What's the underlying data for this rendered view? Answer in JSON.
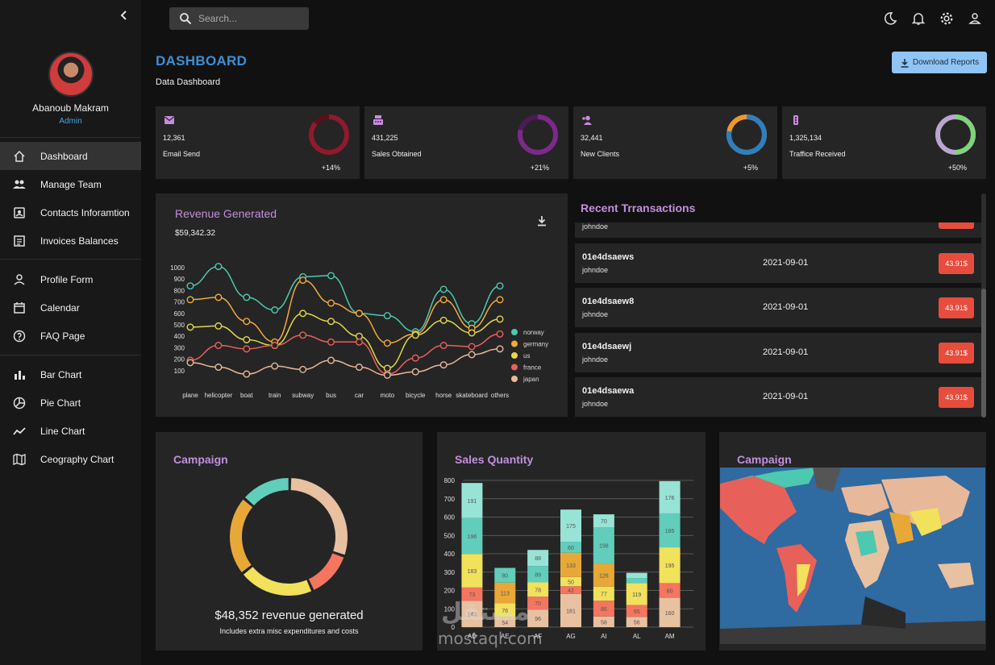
{
  "sidebar": {
    "user": {
      "name": "Abanoub Makram",
      "role": "Admin"
    },
    "items": [
      {
        "label": "Dashboard",
        "icon": "home-icon",
        "active": true
      },
      {
        "label": "Manage Team",
        "icon": "people-icon"
      },
      {
        "label": "Contacts Inforamtion",
        "icon": "contacts-icon"
      },
      {
        "label": "Invoices Balances",
        "icon": "receipt-icon"
      },
      {
        "label": "Profile Form",
        "icon": "person-icon"
      },
      {
        "label": "Calendar",
        "icon": "calendar-icon"
      },
      {
        "label": "FAQ Page",
        "icon": "help-icon"
      },
      {
        "label": "Bar Chart",
        "icon": "bar-chart-icon"
      },
      {
        "label": "Pie Chart",
        "icon": "pie-chart-icon"
      },
      {
        "label": "Line Chart",
        "icon": "line-chart-icon"
      },
      {
        "label": "Ceography Chart",
        "icon": "map-icon"
      }
    ]
  },
  "topbar": {
    "search_placeholder": "Search...",
    "icons": [
      "dark-mode-icon",
      "notifications-icon",
      "settings-icon",
      "person-icon"
    ]
  },
  "header": {
    "title": "DASHBOARD",
    "subtitle": "Data Dashboard",
    "download_label": "Download Reports"
  },
  "stats": [
    {
      "value": "12,361",
      "label": "Email Send",
      "change": "+14%",
      "progress": 0.86,
      "color": "#8e1a2e",
      "track": "#5a0f1c",
      "icon": "email-icon"
    },
    {
      "value": "431,225",
      "label": "Sales Obtained",
      "change": "+21%",
      "progress": 0.79,
      "color": "#7b2a8a",
      "track": "#4d1a57",
      "icon": "point-of-sale-icon"
    },
    {
      "value": "32,441",
      "label": "New Clients",
      "change": "+5%",
      "progress": 0.78,
      "color": "#2f7fc0",
      "track": "#f0962e",
      "icon": "person-add-icon"
    },
    {
      "value": "1,325,134",
      "label": "Traffice Received",
      "change": "+50%",
      "progress": 0.5,
      "color": "#7fd47b",
      "track": "#b9a6cf",
      "icon": "traffic-icon"
    }
  ],
  "revenue": {
    "title": "Revenue Generated",
    "value": "$59,342.32"
  },
  "chart_data": [
    {
      "type": "line",
      "x": [
        "plane",
        "helicopter",
        "boat",
        "train",
        "subway",
        "bus",
        "car",
        "moto",
        "bicycle",
        "horse",
        "skateboard",
        "others"
      ],
      "ylim": [
        0,
        1000
      ],
      "yticks": [
        100,
        200,
        300,
        400,
        500,
        600,
        700,
        800,
        900,
        1000
      ],
      "legend": "right",
      "series": [
        {
          "name": "norway",
          "color": "#4cc9b0",
          "values": [
            840,
            1010,
            740,
            630,
            920,
            930,
            600,
            580,
            440,
            810,
            510,
            840
          ]
        },
        {
          "name": "germany",
          "color": "#f2a93b",
          "values": [
            720,
            740,
            530,
            350,
            890,
            690,
            600,
            340,
            420,
            720,
            470,
            720
          ]
        },
        {
          "name": "us",
          "color": "#e3d94a",
          "values": [
            480,
            490,
            370,
            320,
            600,
            530,
            400,
            120,
            410,
            540,
            430,
            550
          ]
        },
        {
          "name": "france",
          "color": "#e8605a",
          "values": [
            190,
            320,
            290,
            320,
            410,
            350,
            350,
            70,
            210,
            320,
            310,
            420
          ]
        },
        {
          "name": "japan",
          "color": "#e8b89a",
          "values": [
            170,
            130,
            70,
            140,
            110,
            190,
            130,
            60,
            90,
            150,
            240,
            290
          ]
        }
      ]
    },
    {
      "type": "pie",
      "title": "Campaign",
      "slices": [
        {
          "value": 30,
          "color": "#e8c1a0"
        },
        {
          "value": 13,
          "color": "#f47560"
        },
        {
          "value": 21,
          "color": "#f1e15b"
        },
        {
          "value": 22,
          "color": "#e8a838"
        },
        {
          "value": 14,
          "color": "#61cdbb"
        }
      ]
    },
    {
      "type": "bar",
      "title": "Sales Quantity",
      "categories": [
        "AD",
        "AE",
        "AF",
        "AG",
        "AI",
        "AL",
        "AM"
      ],
      "ylim": [
        0,
        800
      ],
      "yticks": [
        0,
        100,
        200,
        300,
        400,
        500,
        600,
        700,
        800
      ],
      "series": [
        {
          "name": "s1",
          "color": "#e8c1a0",
          "values": [
            143,
            54,
            96,
            181,
            58,
            56,
            160
          ]
        },
        {
          "name": "s2",
          "color": "#f47560",
          "values": [
            73,
            0,
            70,
            42,
            86,
            65,
            80
          ]
        },
        {
          "name": "s3",
          "color": "#f1e15b",
          "values": [
            183,
            76,
            78,
            50,
            77,
            119,
            195
          ]
        },
        {
          "name": "s4",
          "color": "#e8a838",
          "values": [
            0,
            113,
            0,
            133,
            126,
            0,
            0
          ]
        },
        {
          "name": "s5",
          "color": "#61cdbb",
          "values": [
            196,
            80,
            89,
            60,
            198,
            28,
            185
          ]
        },
        {
          "name": "s6",
          "color": "#97e3d5",
          "values": [
            191,
            0,
            88,
            175,
            70,
            28,
            176
          ]
        }
      ],
      "data_labels": [
        [
          "143",
          "73",
          "183",
          "",
          "196",
          "191"
        ],
        [
          "54",
          "",
          "76",
          "113",
          "80",
          ""
        ],
        [
          "96",
          "70",
          "78",
          "",
          "89",
          "88"
        ],
        [
          "181",
          "42",
          "50",
          "133",
          "60",
          "175"
        ],
        [
          "58",
          "86",
          "77",
          "126",
          "198",
          "70"
        ],
        [
          "56",
          "65",
          "119",
          "",
          "",
          ""
        ],
        [
          "160",
          "80",
          "195",
          "",
          "185",
          "176"
        ]
      ]
    }
  ],
  "transactions": {
    "title": "Recent Trransactions",
    "rows": [
      {
        "id": "01e4dsaews",
        "user": "johndoe",
        "date": "2021-09-01",
        "cost": "43.91$"
      },
      {
        "id": "01e4dsaew8",
        "user": "johndoe",
        "date": "2021-09-01",
        "cost": "43.91$"
      },
      {
        "id": "01e4dsaewj",
        "user": "johndoe",
        "date": "2021-09-01",
        "cost": "43.91$"
      },
      {
        "id": "01e4dsaewa",
        "user": "johndoe",
        "date": "2021-09-01",
        "cost": "43.91$"
      }
    ],
    "partial_user": "johndoe"
  },
  "campaign": {
    "title": "Campaign",
    "value": "$48,352 revenue generated",
    "sub": "Includes extra misc expenditures and costs"
  },
  "sales": {
    "title": "Sales Quantity"
  },
  "geo": {
    "title": "Campaign"
  },
  "watermark": {
    "text": "mostaql.com",
    "arabic": "مستقل"
  }
}
